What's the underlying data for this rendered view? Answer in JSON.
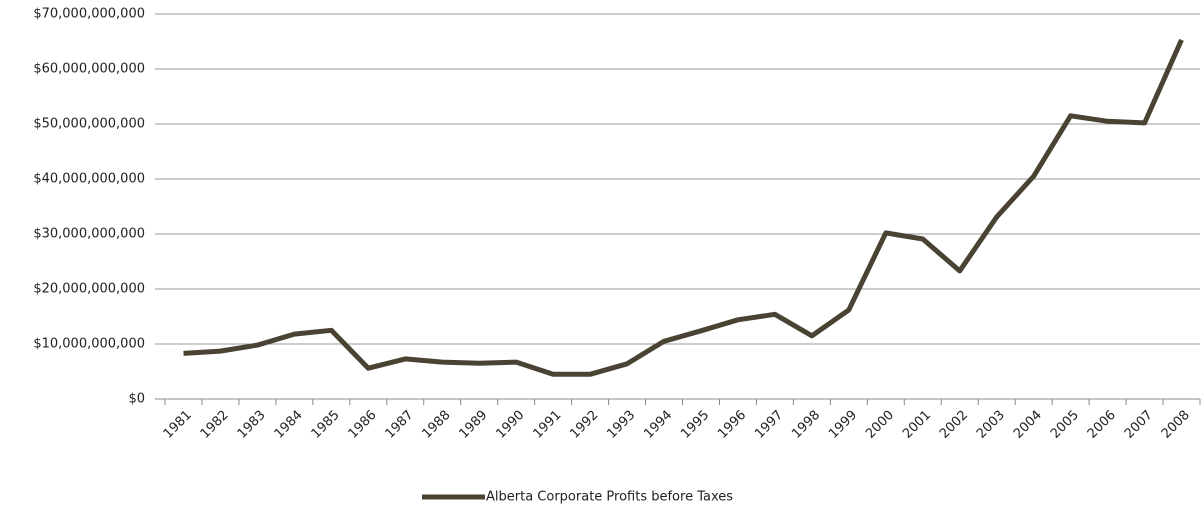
{
  "chart_data": {
    "type": "line",
    "categories": [
      "1981",
      "1982",
      "1983",
      "1984",
      "1985",
      "1986",
      "1987",
      "1988",
      "1989",
      "1990",
      "1991",
      "1992",
      "1993",
      "1994",
      "1995",
      "1996",
      "1997",
      "1998",
      "1999",
      "2000",
      "2001",
      "2002",
      "2003",
      "2004",
      "2005",
      "2006",
      "2007",
      "2008"
    ],
    "series": [
      {
        "name": "Alberta Corporate Profits before Taxes",
        "color": "#4a4232",
        "values": [
          8300000000,
          8700000000,
          9800000000,
          11800000000,
          12500000000,
          5600000000,
          7300000000,
          6700000000,
          6500000000,
          6700000000,
          4500000000,
          4500000000,
          6400000000,
          10500000000,
          12400000000,
          14400000000,
          15400000000,
          11500000000,
          16200000000,
          30200000000,
          29100000000,
          23300000000,
          33100000000,
          40500000000,
          51500000000,
          50500000000,
          50200000000,
          65300000000
        ]
      }
    ],
    "ylim": [
      0,
      70000000000
    ],
    "yticks": [
      {
        "value": 0,
        "label": "$0"
      },
      {
        "value": 10000000000,
        "label": "$10,000,000,000"
      },
      {
        "value": 20000000000,
        "label": "$20,000,000,000"
      },
      {
        "value": 30000000000,
        "label": "$30,000,000,000"
      },
      {
        "value": 40000000000,
        "label": "$40,000,000,000"
      },
      {
        "value": 50000000000,
        "label": "$50,000,000,000"
      },
      {
        "value": 60000000000,
        "label": "$60,000,000,000"
      },
      {
        "value": 70000000000,
        "label": "$70,000,000,000"
      }
    ],
    "grid": true,
    "legend": "bottom"
  }
}
